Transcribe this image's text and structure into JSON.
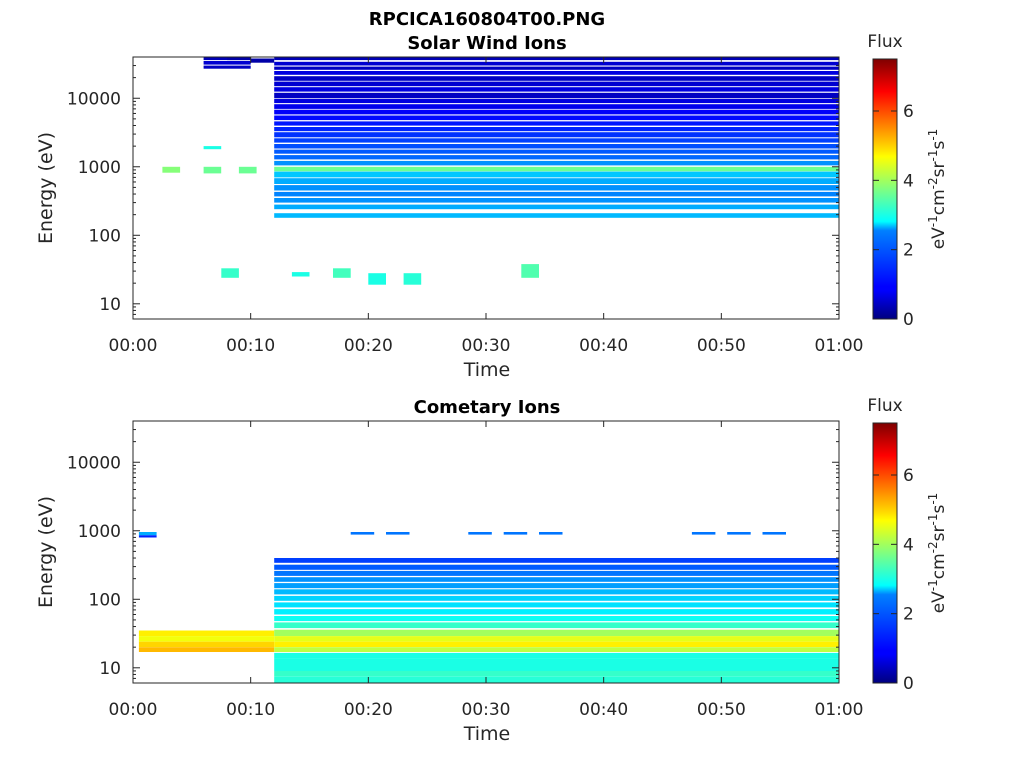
{
  "figure_title": "RPCICA160804T00.PNG",
  "colorbar": {
    "title": "Flux",
    "label": "eV-1cm-2sr-1s-1",
    "label_parts": [
      {
        "t": "eV",
        "sup": false
      },
      {
        "t": "-1",
        "sup": true
      },
      {
        "t": "cm",
        "sup": false
      },
      {
        "t": "-2",
        "sup": true
      },
      {
        "t": "sr",
        "sup": false
      },
      {
        "t": "-1",
        "sup": true
      },
      {
        "t": "s",
        "sup": false
      },
      {
        "t": "-1",
        "sup": true
      }
    ],
    "range": [
      0,
      7.5
    ],
    "ticks": [
      "0",
      "2",
      "4",
      "6"
    ]
  },
  "chart_data": [
    {
      "type": "heatmap",
      "title": "Solar Wind Ions",
      "xlabel": "Time",
      "ylabel": "Energy (eV)",
      "yscale": "log",
      "xlim": [
        0,
        60
      ],
      "ylim": [
        6,
        40000
      ],
      "xticks": [
        "00:00",
        "00:10",
        "00:20",
        "00:30",
        "00:40",
        "00:50",
        "01:00"
      ],
      "yticks": [
        "10",
        "100",
        "1000",
        "10000"
      ],
      "cells": [
        [
          6,
          10,
          36000,
          40000,
          0.4
        ],
        [
          6,
          10,
          31000,
          35000,
          0.6
        ],
        [
          6,
          10,
          27000,
          30000,
          0.5
        ],
        [
          8,
          10,
          36000,
          40000,
          0.3
        ],
        [
          10,
          12,
          33000,
          38000,
          0.3
        ],
        [
          12,
          60,
          36000,
          40000,
          0.4
        ],
        [
          12,
          60,
          30000,
          34000,
          0.6
        ],
        [
          12,
          60,
          26000,
          29000,
          0.5
        ],
        [
          12,
          60,
          22000,
          25000,
          0.7
        ],
        [
          12,
          60,
          18000,
          21000,
          0.5
        ],
        [
          12,
          60,
          15000,
          17500,
          0.6
        ],
        [
          12,
          60,
          12500,
          14500,
          0.7
        ],
        [
          12,
          60,
          10000,
          12000,
          0.5
        ],
        [
          12,
          60,
          8500,
          9800,
          0.7
        ],
        [
          12,
          60,
          7000,
          8200,
          0.8
        ],
        [
          12,
          60,
          5800,
          6800,
          0.9
        ],
        [
          12,
          60,
          4800,
          5600,
          1.0
        ],
        [
          12,
          60,
          4000,
          4600,
          1.1
        ],
        [
          12,
          60,
          3300,
          3800,
          1.2
        ],
        [
          12,
          60,
          2700,
          3200,
          1.3
        ],
        [
          12,
          60,
          2250,
          2600,
          1.4
        ],
        [
          12,
          60,
          1850,
          2150,
          1.5
        ],
        [
          12,
          60,
          1550,
          1780,
          1.6
        ],
        [
          12,
          60,
          1280,
          1480,
          1.7
        ],
        [
          12,
          60,
          1050,
          1220,
          2.0
        ],
        [
          2.5,
          4,
          820,
          1000,
          3.8
        ],
        [
          6,
          7.5,
          800,
          1000,
          3.6
        ],
        [
          9,
          10.5,
          800,
          1000,
          3.6
        ],
        [
          6,
          7.5,
          1800,
          2000,
          3.0
        ],
        [
          12,
          60,
          860,
          1000,
          3.6
        ],
        [
          12,
          60,
          700,
          850,
          2.4
        ],
        [
          12,
          60,
          560,
          680,
          2.2
        ],
        [
          12,
          60,
          450,
          540,
          2.0
        ],
        [
          12,
          60,
          370,
          430,
          1.9
        ],
        [
          12,
          60,
          300,
          350,
          2.0
        ],
        [
          12,
          60,
          240,
          280,
          2.2
        ],
        [
          12,
          60,
          180,
          210,
          2.3
        ],
        [
          7.5,
          9,
          24,
          33,
          3.2
        ],
        [
          13.5,
          15,
          25,
          29,
          3.0
        ],
        [
          17,
          18.5,
          24,
          33,
          3.3
        ],
        [
          20,
          21.5,
          19,
          28,
          3.0
        ],
        [
          23,
          24.5,
          19,
          28,
          3.1
        ],
        [
          33,
          34.5,
          24,
          38,
          3.4
        ]
      ]
    },
    {
      "type": "heatmap",
      "title": "Cometary Ions",
      "xlabel": "Time",
      "ylabel": "Energy (eV)",
      "yscale": "log",
      "xlim": [
        0,
        60
      ],
      "ylim": [
        6,
        40000
      ],
      "xticks": [
        "00:00",
        "00:10",
        "00:20",
        "00:30",
        "00:40",
        "00:50",
        "01:00"
      ],
      "yticks": [
        "10",
        "100",
        "1000",
        "10000"
      ],
      "cells": [
        [
          0.5,
          2,
          860,
          960,
          2.2
        ],
        [
          0.5,
          2,
          800,
          860,
          1.2
        ],
        [
          18.5,
          20.5,
          880,
          960,
          1.8
        ],
        [
          21.5,
          23.5,
          880,
          960,
          1.8
        ],
        [
          28.5,
          30.5,
          880,
          960,
          1.8
        ],
        [
          31.5,
          33.5,
          880,
          960,
          1.8
        ],
        [
          34.5,
          36.5,
          880,
          960,
          1.8
        ],
        [
          47.5,
          49.5,
          880,
          960,
          1.8
        ],
        [
          50.5,
          52.5,
          880,
          960,
          1.8
        ],
        [
          53.5,
          55.5,
          880,
          960,
          1.8
        ],
        [
          12,
          60,
          340,
          400,
          1.4
        ],
        [
          12,
          60,
          270,
          320,
          1.6
        ],
        [
          12,
          60,
          220,
          260,
          1.8
        ],
        [
          12,
          60,
          180,
          210,
          2.0
        ],
        [
          12,
          60,
          145,
          172,
          2.1
        ],
        [
          12,
          60,
          118,
          140,
          2.3
        ],
        [
          12,
          60,
          95,
          112,
          2.5
        ],
        [
          12,
          60,
          76,
          90,
          2.6
        ],
        [
          12,
          60,
          60,
          72,
          2.7
        ],
        [
          12,
          60,
          48,
          57,
          2.9
        ],
        [
          12,
          60,
          38,
          46,
          3.2
        ],
        [
          0.5,
          12,
          29,
          35,
          4.8
        ],
        [
          0.5,
          12,
          24,
          29,
          4.6
        ],
        [
          0.5,
          12,
          20,
          24,
          5.0
        ],
        [
          0.5,
          12,
          17,
          20,
          5.2
        ],
        [
          12,
          60,
          29,
          36,
          4.0
        ],
        [
          12,
          60,
          24,
          29,
          4.5
        ],
        [
          12,
          60,
          20,
          24,
          4.8
        ],
        [
          12,
          60,
          17,
          20,
          4.2
        ],
        [
          12,
          60,
          13.5,
          16.5,
          3.0
        ],
        [
          12,
          60,
          11,
          13.5,
          3.0
        ],
        [
          12,
          60,
          9,
          11,
          3.0
        ],
        [
          12,
          60,
          7.5,
          9,
          3.2
        ],
        [
          12,
          60,
          6,
          7.5,
          3.1
        ]
      ]
    }
  ]
}
